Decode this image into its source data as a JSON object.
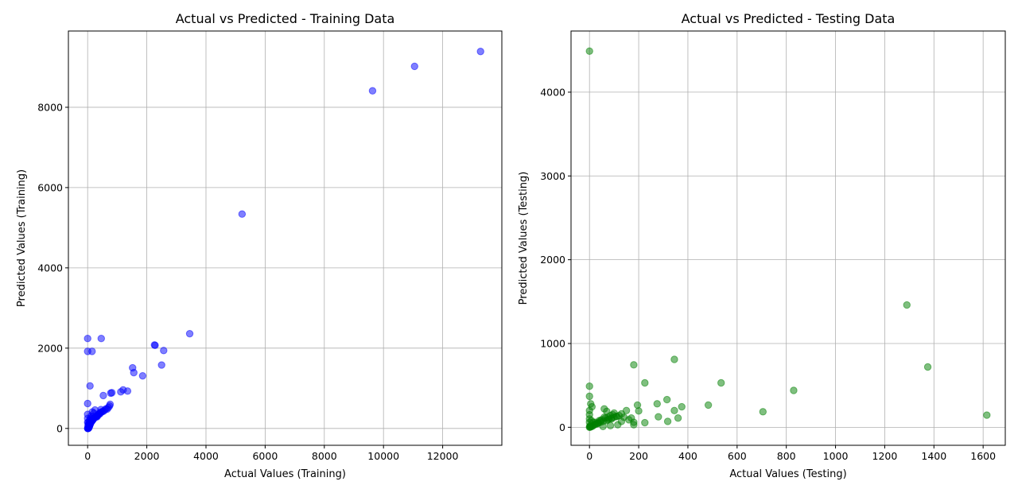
{
  "chart_data": [
    {
      "type": "scatter",
      "title": "Actual vs Predicted - Training Data",
      "xlabel": "Actual Values (Training)",
      "ylabel": "Predicted Values (Training)",
      "xlim": [
        -650,
        14000
      ],
      "ylim": [
        -420,
        9900
      ],
      "xticks": [
        0,
        2000,
        4000,
        6000,
        8000,
        10000,
        12000
      ],
      "yticks": [
        0,
        2000,
        4000,
        6000,
        8000
      ],
      "grid": true,
      "color": "#0000ff",
      "alpha": 0.5,
      "points": {
        "x": [
          13280,
          11050,
          9630,
          5220,
          3450,
          2570,
          2500,
          2260,
          2280,
          1860,
          1560,
          1520,
          1350,
          1200,
          1120,
          820,
          780,
          760,
          740,
          700,
          660,
          620,
          580,
          540,
          500,
          470,
          440,
          420,
          400,
          380,
          360,
          340,
          320,
          300,
          280,
          260,
          240,
          220,
          210,
          200,
          190,
          180,
          170,
          160,
          150,
          140,
          130,
          120,
          110,
          100,
          95,
          90,
          85,
          80,
          75,
          70,
          65,
          60,
          55,
          50,
          45,
          40,
          35,
          30,
          25,
          20,
          15,
          10,
          5,
          2,
          0,
          0,
          0,
          460,
          150,
          0,
          0,
          80,
          0,
          530,
          450,
          250,
          180,
          100,
          60,
          30,
          320,
          210,
          120,
          70,
          20,
          40,
          10,
          160,
          90
        ],
        "y": [
          9390,
          9020,
          8410,
          5340,
          2360,
          1940,
          1580,
          2080,
          2070,
          1310,
          1390,
          1510,
          930,
          960,
          910,
          890,
          880,
          600,
          560,
          520,
          480,
          490,
          460,
          430,
          420,
          410,
          400,
          370,
          380,
          350,
          340,
          330,
          310,
          300,
          290,
          280,
          270,
          260,
          250,
          240,
          230,
          220,
          210,
          200,
          190,
          180,
          170,
          160,
          150,
          140,
          130,
          120,
          110,
          100,
          90,
          80,
          70,
          60,
          50,
          40,
          30,
          20,
          15,
          10,
          5,
          3,
          2,
          1,
          0,
          0,
          2240,
          1920,
          620,
          2240,
          1920,
          350,
          250,
          1060,
          150,
          820,
          470,
          460,
          300,
          200,
          120,
          90,
          290,
          380,
          310,
          210,
          150,
          110,
          60,
          410,
          250
        ]
      }
    },
    {
      "type": "scatter",
      "title": "Actual vs Predicted - Testing Data",
      "xlabel": "Actual Values (Testing)",
      "ylabel": "Predicted Values (Testing)",
      "xlim": [
        -75,
        1690
      ],
      "ylim": [
        -215,
        4730
      ],
      "xticks": [
        0,
        200,
        400,
        600,
        800,
        1000,
        1200,
        1400,
        1600
      ],
      "yticks": [
        0,
        1000,
        2000,
        3000,
        4000
      ],
      "grid": true,
      "color": "#008000",
      "alpha": 0.5,
      "points": {
        "x": [
          0,
          1290,
          1375,
          830,
          345,
          180,
          1615,
          705,
          535,
          483,
          375,
          315,
          345,
          275,
          280,
          225,
          225,
          195,
          200,
          180,
          360,
          318,
          0,
          0,
          5,
          10,
          0,
          180,
          150,
          140,
          130,
          120,
          110,
          100,
          95,
          90,
          85,
          80,
          75,
          70,
          65,
          60,
          55,
          50,
          45,
          40,
          35,
          30,
          25,
          20,
          15,
          10,
          5,
          2,
          0,
          0,
          0,
          60,
          70,
          100,
          160,
          130,
          115,
          85,
          55,
          35,
          25,
          15,
          8,
          3,
          1,
          0,
          110,
          90,
          75,
          45,
          170
        ],
        "y": [
          4490,
          1460,
          720,
          440,
          810,
          745,
          145,
          185,
          530,
          265,
          245,
          330,
          200,
          280,
          125,
          530,
          55,
          265,
          195,
          60,
          110,
          70,
          490,
          370,
          280,
          245,
          200,
          30,
          200,
          120,
          160,
          140,
          130,
          120,
          150,
          110,
          140,
          100,
          90,
          80,
          110,
          120,
          70,
          90,
          60,
          80,
          50,
          40,
          60,
          30,
          20,
          10,
          5,
          2,
          0,
          100,
          150,
          220,
          190,
          170,
          90,
          70,
          30,
          20,
          10,
          50,
          40,
          60,
          80,
          20,
          10,
          60,
          130,
          100,
          120,
          80,
          110
        ]
      }
    }
  ]
}
